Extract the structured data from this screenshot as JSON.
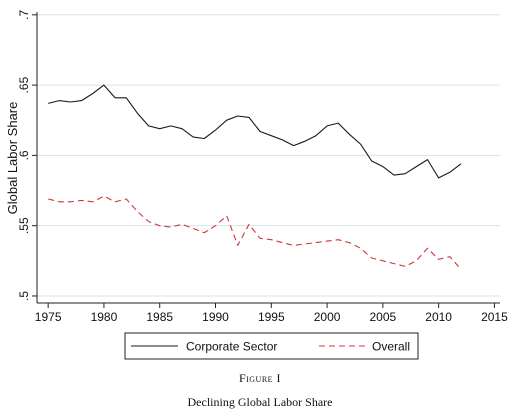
{
  "figure": {
    "label": "Figure I",
    "title": "Declining Global Labor Share"
  },
  "chart_data": {
    "type": "line",
    "title": "",
    "xlabel": "",
    "ylabel": "Global Labor Share",
    "xlim": [
      1974,
      2015.5
    ],
    "ylim": [
      0.495,
      0.702
    ],
    "xticks": [
      1975,
      1980,
      1985,
      1990,
      1995,
      2000,
      2005,
      2010,
      2015
    ],
    "xtick_labels": [
      "1975",
      "1980",
      "1985",
      "1990",
      "1995",
      "2000",
      "2005",
      "2010",
      "2015"
    ],
    "yticks": [
      0.5,
      0.55,
      0.6,
      0.65,
      0.7
    ],
    "ytick_labels": [
      ".5",
      ".55",
      ".6",
      ".65",
      ".7"
    ],
    "grid": "horizontal",
    "legend_position": "bottom",
    "series": [
      {
        "name": "Corporate Sector",
        "style": "solid",
        "color": "#1a1a1a",
        "x": [
          1975,
          1976,
          1977,
          1978,
          1979,
          1980,
          1981,
          1982,
          1983,
          1984,
          1985,
          1986,
          1987,
          1988,
          1989,
          1990,
          1991,
          1992,
          1993,
          1994,
          1995,
          1996,
          1997,
          1998,
          1999,
          2000,
          2001,
          2002,
          2003,
          2004,
          2005,
          2006,
          2007,
          2008,
          2009,
          2010,
          2011,
          2012
        ],
        "y": [
          0.637,
          0.639,
          0.638,
          0.639,
          0.644,
          0.65,
          0.641,
          0.641,
          0.63,
          0.621,
          0.619,
          0.621,
          0.619,
          0.613,
          0.612,
          0.618,
          0.625,
          0.628,
          0.627,
          0.617,
          0.614,
          0.611,
          0.607,
          0.61,
          0.614,
          0.621,
          0.623,
          0.615,
          0.608,
          0.596,
          0.592,
          0.586,
          0.587,
          0.592,
          0.597,
          0.584,
          0.588,
          0.594
        ]
      },
      {
        "name": "Overall",
        "style": "dashed",
        "color": "#d0343b",
        "x": [
          1975,
          1976,
          1977,
          1978,
          1979,
          1980,
          1981,
          1982,
          1983,
          1984,
          1985,
          1986,
          1987,
          1988,
          1989,
          1990,
          1991,
          1992,
          1993,
          1994,
          1995,
          1996,
          1997,
          1998,
          1999,
          2000,
          2001,
          2002,
          2003,
          2004,
          2005,
          2006,
          2007,
          2008,
          2009,
          2010,
          2011,
          2012
        ],
        "y": [
          0.569,
          0.567,
          0.567,
          0.568,
          0.567,
          0.571,
          0.567,
          0.569,
          0.56,
          0.553,
          0.55,
          0.549,
          0.551,
          0.548,
          0.545,
          0.55,
          0.557,
          0.536,
          0.551,
          0.541,
          0.54,
          0.538,
          0.536,
          0.537,
          0.538,
          0.539,
          0.54,
          0.538,
          0.534,
          0.527,
          0.525,
          0.523,
          0.521,
          0.525,
          0.534,
          0.526,
          0.528,
          0.519
        ]
      }
    ]
  }
}
